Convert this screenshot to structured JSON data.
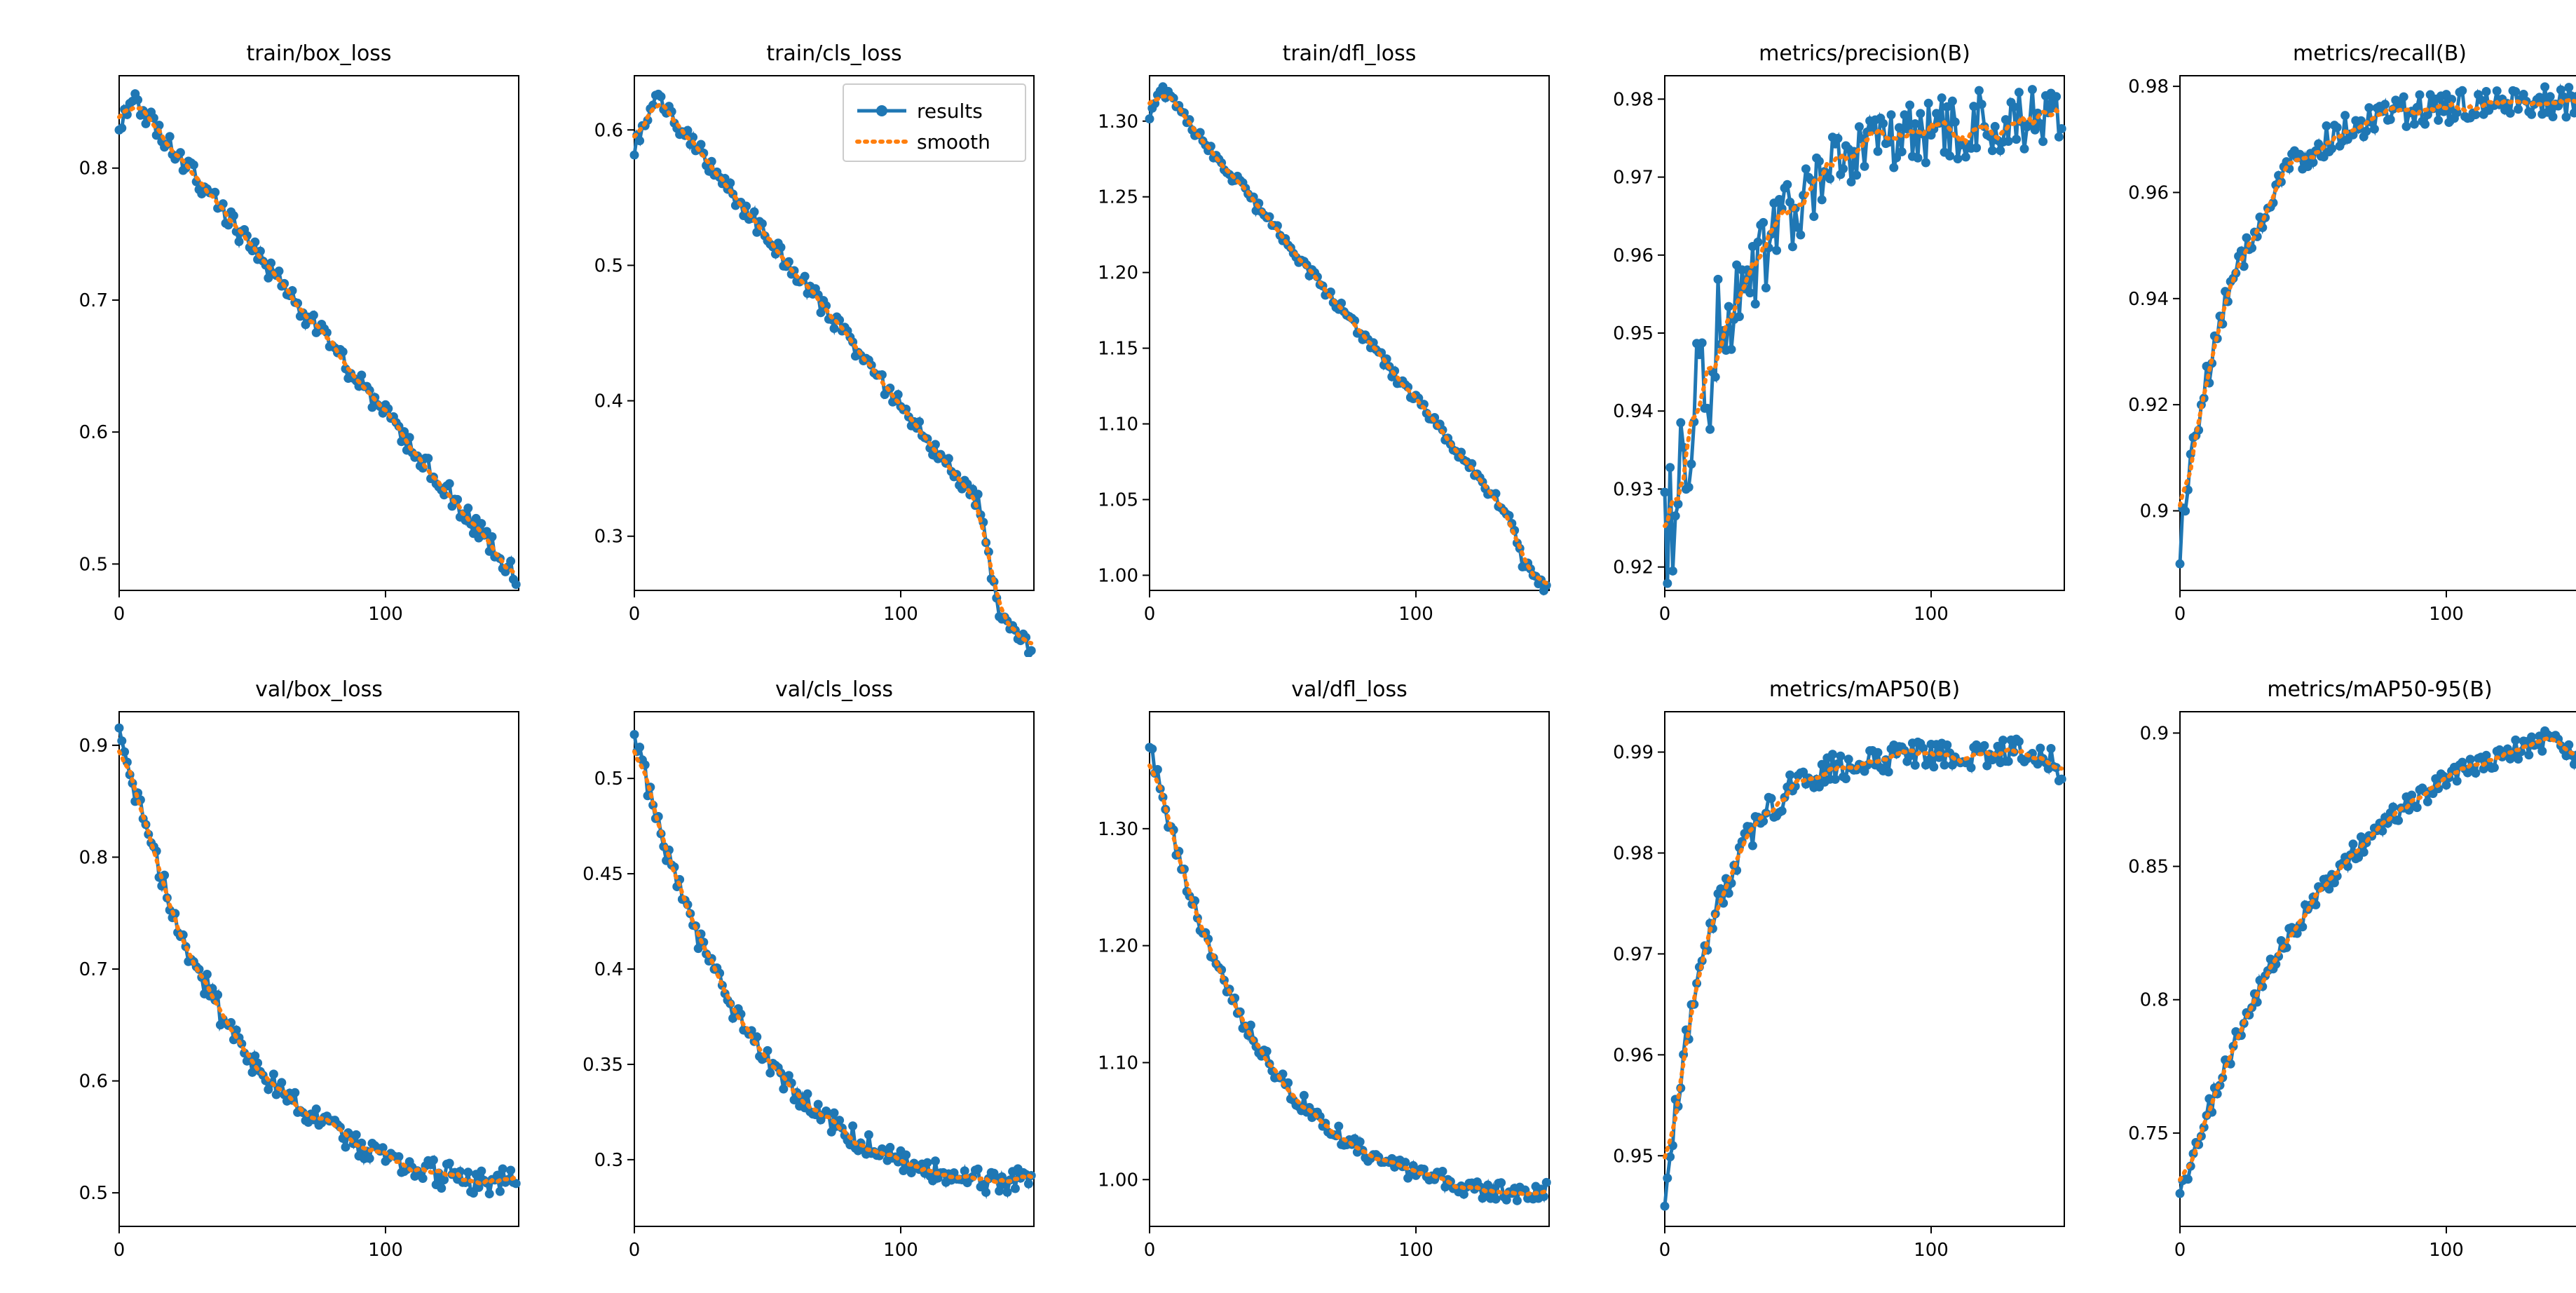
{
  "global": {
    "n_points": 150,
    "x_range": [
      0,
      150
    ],
    "x_ticks": [
      0,
      100
    ],
    "font_family": "DejaVu Sans, Helvetica, Arial, sans-serif",
    "title_fontsize": 30,
    "tick_fontsize": 26,
    "background_color": "#ffffff",
    "axis_color": "#000000",
    "results_color": "#1f77b4",
    "smooth_color": "#ff7f0e",
    "results_linewidth": 5,
    "smooth_linewidth": 6,
    "smooth_dash": "3 8",
    "marker_radius": 6.5,
    "legend": {
      "show_on_panel_index": 1,
      "labels": [
        "results",
        "smooth"
      ],
      "fontsize": 28,
      "box_stroke": "#cccccc",
      "box_fill": "#ffffff"
    }
  },
  "panels": [
    {
      "title": "train/box_loss",
      "ylim": [
        0.48,
        0.87
      ],
      "yticks": [
        0.5,
        0.6,
        0.7,
        0.8
      ],
      "start": 0.83,
      "peak": 0.85,
      "peak_at": 6,
      "end": 0.49,
      "noise": 0.008,
      "curve": 0.0,
      "end_drop": 0.0
    },
    {
      "title": "train/cls_loss",
      "ylim": [
        0.26,
        0.64
      ],
      "yticks": [
        0.3,
        0.4,
        0.5,
        0.6
      ],
      "start": 0.585,
      "peak": 0.625,
      "peak_at": 8,
      "end": 0.275,
      "noise": 0.007,
      "curve": 0.0,
      "end_drop": 0.06,
      "end_drop_at": 130
    },
    {
      "title": "train/dfl_loss",
      "ylim": [
        0.99,
        1.33
      ],
      "yticks": [
        1.0,
        1.05,
        1.1,
        1.15,
        1.2,
        1.25,
        1.3
      ],
      "start": 1.305,
      "peak": 1.32,
      "peak_at": 5,
      "end": 1.01,
      "noise": 0.004,
      "curve": 0.0,
      "end_drop": 0.02,
      "end_drop_at": 135
    },
    {
      "title": "metrics/precision(B)",
      "ylim": [
        0.917,
        0.983
      ],
      "yticks": [
        0.92,
        0.93,
        0.94,
        0.95,
        0.96,
        0.97,
        0.98
      ],
      "start": 0.922,
      "end": 0.978,
      "direction": "up",
      "noise": 0.0045,
      "curve": 1.6,
      "early_noise_boost": 2.2
    },
    {
      "title": "metrics/recall(B)",
      "ylim": [
        0.885,
        0.982
      ],
      "yticks": [
        0.9,
        0.92,
        0.94,
        0.96,
        0.98
      ],
      "start": 0.895,
      "end": 0.977,
      "direction": "up",
      "noise": 0.003,
      "curve": 2.2,
      "initial_dip": 0.89
    },
    {
      "title": "val/box_loss",
      "ylim": [
        0.47,
        0.93
      ],
      "yticks": [
        0.5,
        0.6,
        0.7,
        0.8,
        0.9
      ],
      "start": 0.915,
      "peak": 0.915,
      "peak_at": 0,
      "end": 0.505,
      "noise": 0.012,
      "curve": 1.2,
      "end_uptick": 0.015
    },
    {
      "title": "val/cls_loss",
      "ylim": [
        0.265,
        0.535
      ],
      "yticks": [
        0.3,
        0.35,
        0.4,
        0.45,
        0.5
      ],
      "start": 0.525,
      "peak": 0.525,
      "peak_at": 0,
      "end": 0.285,
      "noise": 0.006,
      "curve": 1.2,
      "end_uptick": 0.008
    },
    {
      "title": "val/dfl_loss",
      "ylim": [
        0.96,
        1.4
      ],
      "yticks": [
        1.0,
        1.1,
        1.2,
        1.3
      ],
      "start": 1.375,
      "peak": 1.375,
      "peak_at": 0,
      "end": 0.985,
      "noise": 0.008,
      "curve": 1.3,
      "end_uptick": 0.008
    },
    {
      "title": "metrics/mAP50(B)",
      "ylim": [
        0.943,
        0.994
      ],
      "yticks": [
        0.95,
        0.96,
        0.97,
        0.98,
        0.99
      ],
      "start": 0.946,
      "end": 0.99,
      "direction": "up",
      "noise": 0.0015,
      "curve": 2.6,
      "initial_dip": 0.945,
      "end_dip": 0.002
    },
    {
      "title": "metrics/mAP50-95(B)",
      "ylim": [
        0.715,
        0.908
      ],
      "yticks": [
        0.75,
        0.8,
        0.85,
        0.9
      ],
      "start": 0.725,
      "end": 0.9,
      "direction": "up",
      "noise": 0.004,
      "curve": 0.9,
      "end_dip": 0.01
    }
  ]
}
